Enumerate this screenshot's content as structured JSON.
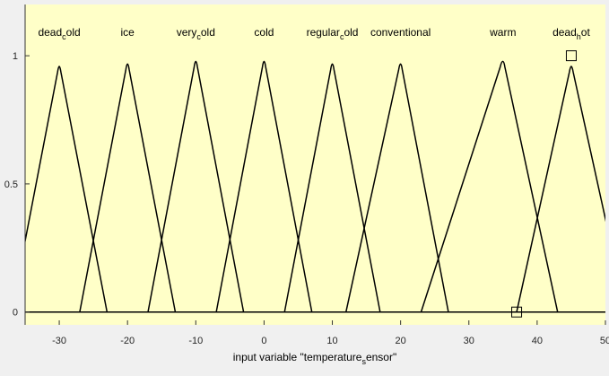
{
  "chart_data": {
    "type": "line",
    "title": "",
    "xlabel": "input variable \"temperature_sensor\"",
    "xlabel_parts": [
      "input variable \"temperature",
      "s",
      "ensor\""
    ],
    "ylabel": "",
    "xlim": [
      -35,
      50
    ],
    "ylim": [
      -0.05,
      1.2
    ],
    "xticks": [
      -30,
      -20,
      -10,
      0,
      10,
      20,
      30,
      40,
      50
    ],
    "yticks": [
      0,
      0.5,
      1
    ],
    "ytick_labels": [
      "0",
      "0.5",
      "1"
    ],
    "grid": false,
    "colors": {
      "plot_bg": "#ffffc8",
      "page_bg": "#f0f0f0",
      "line": "#000000"
    },
    "series": [
      {
        "name": "dead_cold",
        "label_parts": [
          "dead",
          "c",
          "old"
        ],
        "x": [
          -37,
          -30,
          -23
        ],
        "y": [
          0,
          0.97,
          0
        ]
      },
      {
        "name": "ice",
        "label_parts": [
          "ice"
        ],
        "x": [
          -27,
          -20,
          -13
        ],
        "y": [
          0,
          0.98,
          0
        ]
      },
      {
        "name": "very_cold",
        "label_parts": [
          "very",
          "c",
          "old"
        ],
        "x": [
          -17,
          -10,
          -3
        ],
        "y": [
          0,
          0.99,
          0
        ]
      },
      {
        "name": "cold",
        "label_parts": [
          "cold"
        ],
        "x": [
          -7,
          0,
          7
        ],
        "y": [
          0,
          0.99,
          0
        ]
      },
      {
        "name": "regular_cold",
        "label_parts": [
          "regular",
          "c",
          "old"
        ],
        "x": [
          3,
          10,
          17
        ],
        "y": [
          0,
          0.98,
          0
        ]
      },
      {
        "name": "conventional",
        "label_parts": [
          "conventional"
        ],
        "x": [
          12,
          20,
          27
        ],
        "y": [
          0,
          0.98,
          0
        ]
      },
      {
        "name": "warm",
        "label_parts": [
          "warm"
        ],
        "x": [
          23,
          35,
          43
        ],
        "y": [
          0,
          0.99,
          0
        ]
      },
      {
        "name": "dead_hot",
        "label_parts": [
          "dead",
          "h",
          "ot"
        ],
        "x": [
          37,
          45,
          53
        ],
        "y": [
          0,
          0.97,
          0
        ]
      }
    ],
    "markers": [
      {
        "shape": "square",
        "x": 45,
        "y": 1.0
      },
      {
        "shape": "square",
        "x": 37,
        "y": 0.0
      }
    ]
  }
}
